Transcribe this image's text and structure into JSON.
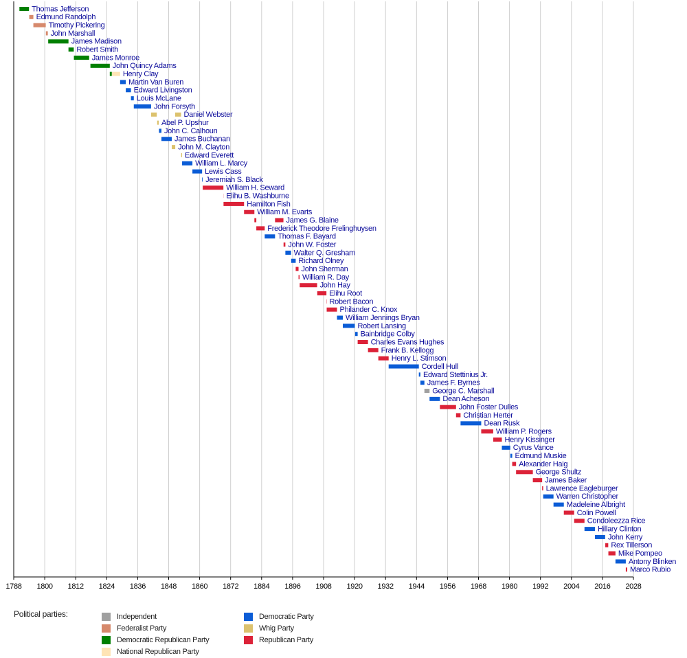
{
  "chart_data": {
    "type": "timeline",
    "legend_title": "Political parties:",
    "parties": [
      {
        "name": "Independent",
        "color": "#a0a0a0"
      },
      {
        "name": "Federalist Party",
        "color": "#d6896c"
      },
      {
        "name": "Democratic Republican Party",
        "color": "#008000"
      },
      {
        "name": "National Republican Party",
        "color": "#ffe4b5"
      },
      {
        "name": "Democratic Party",
        "color": "#0b5cd6"
      },
      {
        "name": "Whig Party",
        "color": "#dcc26e"
      },
      {
        "name": "Republican Party",
        "color": "#dc2238"
      }
    ],
    "xlim": [
      1788,
      2028
    ],
    "xticks": [
      1788,
      1800,
      1812,
      1824,
      1836,
      1848,
      1860,
      1872,
      1884,
      1896,
      1908,
      1920,
      1932,
      1944,
      1956,
      1968,
      1980,
      1992,
      2004,
      2016,
      2028
    ],
    "grid": true,
    "rows": [
      {
        "name": "Thomas Jefferson",
        "terms": [
          {
            "start": 1790.2,
            "end": 1793.9,
            "party": "Democratic Republican Party"
          }
        ]
      },
      {
        "name": "Edmund Randolph",
        "terms": [
          {
            "start": 1794.0,
            "end": 1795.6,
            "party": "Federalist Party"
          }
        ]
      },
      {
        "name": "Timothy Pickering",
        "terms": [
          {
            "start": 1795.6,
            "end": 1800.4,
            "party": "Federalist Party"
          }
        ]
      },
      {
        "name": "John Marshall",
        "terms": [
          {
            "start": 1800.45,
            "end": 1801.2,
            "party": "Federalist Party"
          }
        ]
      },
      {
        "name": "James Madison",
        "terms": [
          {
            "start": 1801.35,
            "end": 1809.2,
            "party": "Democratic Republican Party"
          }
        ]
      },
      {
        "name": "Robert Smith",
        "terms": [
          {
            "start": 1809.2,
            "end": 1811.25,
            "party": "Democratic Republican Party"
          }
        ]
      },
      {
        "name": "James Monroe",
        "terms": [
          {
            "start": 1811.3,
            "end": 1817.2,
            "party": "Democratic Republican Party"
          }
        ]
      },
      {
        "name": "John Quincy Adams",
        "terms": [
          {
            "start": 1817.7,
            "end": 1825.2,
            "party": "Democratic Republican Party"
          }
        ]
      },
      {
        "name": "Henry Clay",
        "terms": [
          {
            "start": 1825.2,
            "end": 1826.0,
            "party": "Democratic Republican Party"
          },
          {
            "start": 1826.0,
            "end": 1829.2,
            "party": "National Republican Party"
          }
        ]
      },
      {
        "name": "Martin Van Buren",
        "terms": [
          {
            "start": 1829.2,
            "end": 1831.4,
            "party": "Democratic Party"
          }
        ]
      },
      {
        "name": "Edward Livingston",
        "terms": [
          {
            "start": 1831.4,
            "end": 1833.4,
            "party": "Democratic Party"
          }
        ]
      },
      {
        "name": "Louis McLane",
        "terms": [
          {
            "start": 1833.4,
            "end": 1834.5,
            "party": "Democratic Party"
          }
        ]
      },
      {
        "name": "John Forsyth",
        "terms": [
          {
            "start": 1834.5,
            "end": 1841.2,
            "party": "Democratic Party"
          }
        ]
      },
      {
        "name": "Daniel Webster",
        "terms": [
          {
            "start": 1841.2,
            "end": 1843.4,
            "party": "Whig Party"
          },
          {
            "start": 1850.5,
            "end": 1852.8,
            "party": "Whig Party"
          }
        ]
      },
      {
        "name": "Abel P. Upshur",
        "terms": [
          {
            "start": 1843.55,
            "end": 1844.15,
            "party": "Whig Party"
          }
        ]
      },
      {
        "name": "John C. Calhoun",
        "terms": [
          {
            "start": 1844.25,
            "end": 1845.2,
            "party": "Democratic Party"
          }
        ]
      },
      {
        "name": "James Buchanan",
        "terms": [
          {
            "start": 1845.2,
            "end": 1849.2,
            "party": "Democratic Party"
          }
        ]
      },
      {
        "name": "John M. Clayton",
        "terms": [
          {
            "start": 1849.2,
            "end": 1850.55,
            "party": "Whig Party"
          }
        ]
      },
      {
        "name": "Edward Everett",
        "terms": [
          {
            "start": 1852.85,
            "end": 1853.2,
            "party": "Whig Party"
          }
        ]
      },
      {
        "name": "William L. Marcy",
        "terms": [
          {
            "start": 1853.2,
            "end": 1857.2,
            "party": "Democratic Party"
          }
        ]
      },
      {
        "name": "Lewis Cass",
        "terms": [
          {
            "start": 1857.2,
            "end": 1860.95,
            "party": "Democratic Party"
          }
        ]
      },
      {
        "name": "Jeremiah S. Black",
        "terms": [
          {
            "start": 1860.95,
            "end": 1861.2,
            "party": "Democratic Party"
          }
        ]
      },
      {
        "name": "William H. Seward",
        "terms": [
          {
            "start": 1861.2,
            "end": 1869.2,
            "party": "Republican Party"
          }
        ]
      },
      {
        "name": "Elihu B. Washburne",
        "terms": [
          {
            "start": 1869.2,
            "end": 1869.25,
            "party": "Republican Party"
          }
        ]
      },
      {
        "name": "Hamilton Fish",
        "terms": [
          {
            "start": 1869.25,
            "end": 1877.2,
            "party": "Republican Party"
          }
        ]
      },
      {
        "name": "William M. Evarts",
        "terms": [
          {
            "start": 1877.2,
            "end": 1881.2,
            "party": "Republican Party"
          }
        ]
      },
      {
        "name": "James G. Blaine",
        "terms": [
          {
            "start": 1881.2,
            "end": 1881.95,
            "party": "Republican Party"
          },
          {
            "start": 1889.2,
            "end": 1892.45,
            "party": "Republican Party"
          }
        ]
      },
      {
        "name": "Frederick Theodore Frelinghuysen",
        "terms": [
          {
            "start": 1881.95,
            "end": 1885.2,
            "party": "Republican Party"
          }
        ]
      },
      {
        "name": "Thomas F. Bayard",
        "terms": [
          {
            "start": 1885.2,
            "end": 1889.2,
            "party": "Democratic Party"
          }
        ]
      },
      {
        "name": "John W. Foster",
        "terms": [
          {
            "start": 1892.5,
            "end": 1893.2,
            "party": "Republican Party"
          }
        ]
      },
      {
        "name": "Walter Q. Gresham",
        "terms": [
          {
            "start": 1893.2,
            "end": 1895.4,
            "party": "Democratic Party"
          }
        ]
      },
      {
        "name": "Richard Olney",
        "terms": [
          {
            "start": 1895.45,
            "end": 1897.2,
            "party": "Democratic Party"
          }
        ]
      },
      {
        "name": "John Sherman",
        "terms": [
          {
            "start": 1897.2,
            "end": 1898.3,
            "party": "Republican Party"
          }
        ]
      },
      {
        "name": "William R. Day",
        "terms": [
          {
            "start": 1898.3,
            "end": 1898.7,
            "party": "Republican Party"
          }
        ]
      },
      {
        "name": "John Hay",
        "terms": [
          {
            "start": 1898.75,
            "end": 1905.5,
            "party": "Republican Party"
          }
        ]
      },
      {
        "name": "Elihu Root",
        "terms": [
          {
            "start": 1905.55,
            "end": 1909.1,
            "party": "Republican Party"
          }
        ]
      },
      {
        "name": "Robert Bacon",
        "terms": [
          {
            "start": 1909.1,
            "end": 1909.2,
            "party": "Republican Party"
          }
        ]
      },
      {
        "name": "Philander C. Knox",
        "terms": [
          {
            "start": 1909.2,
            "end": 1913.2,
            "party": "Republican Party"
          }
        ]
      },
      {
        "name": "William Jennings Bryan",
        "terms": [
          {
            "start": 1913.2,
            "end": 1915.45,
            "party": "Democratic Party"
          }
        ]
      },
      {
        "name": "Robert Lansing",
        "terms": [
          {
            "start": 1915.45,
            "end": 1920.1,
            "party": "Democratic Party"
          }
        ]
      },
      {
        "name": "Bainbridge Colby",
        "terms": [
          {
            "start": 1920.2,
            "end": 1921.2,
            "party": "Democratic Party"
          }
        ]
      },
      {
        "name": "Charles Evans Hughes",
        "terms": [
          {
            "start": 1921.2,
            "end": 1925.2,
            "party": "Republican Party"
          }
        ]
      },
      {
        "name": "Frank B. Kellogg",
        "terms": [
          {
            "start": 1925.2,
            "end": 1929.2,
            "party": "Republican Party"
          }
        ]
      },
      {
        "name": "Henry L. Stimson",
        "terms": [
          {
            "start": 1929.2,
            "end": 1933.2,
            "party": "Republican Party"
          }
        ]
      },
      {
        "name": "Cordell Hull",
        "terms": [
          {
            "start": 1933.2,
            "end": 1944.9,
            "party": "Democratic Party"
          }
        ]
      },
      {
        "name": "Edward Stettinius Jr.",
        "terms": [
          {
            "start": 1944.9,
            "end": 1945.5,
            "party": "Democratic Party"
          }
        ]
      },
      {
        "name": "James F. Byrnes",
        "terms": [
          {
            "start": 1945.5,
            "end": 1947.05,
            "party": "Democratic Party"
          }
        ]
      },
      {
        "name": "George C. Marshall",
        "terms": [
          {
            "start": 1947.05,
            "end": 1949.05,
            "party": "Independent"
          }
        ]
      },
      {
        "name": "Dean Acheson",
        "terms": [
          {
            "start": 1949.05,
            "end": 1953.05,
            "party": "Democratic Party"
          }
        ]
      },
      {
        "name": "John Foster Dulles",
        "terms": [
          {
            "start": 1953.05,
            "end": 1959.3,
            "party": "Republican Party"
          }
        ]
      },
      {
        "name": "Christian Herter",
        "terms": [
          {
            "start": 1959.3,
            "end": 1961.05,
            "party": "Republican Party"
          }
        ]
      },
      {
        "name": "Dean Rusk",
        "terms": [
          {
            "start": 1961.05,
            "end": 1969.05,
            "party": "Democratic Party"
          }
        ]
      },
      {
        "name": "William P. Rogers",
        "terms": [
          {
            "start": 1969.05,
            "end": 1973.7,
            "party": "Republican Party"
          }
        ]
      },
      {
        "name": "Henry Kissinger",
        "terms": [
          {
            "start": 1973.7,
            "end": 1977.05,
            "party": "Republican Party"
          }
        ]
      },
      {
        "name": "Cyrus Vance",
        "terms": [
          {
            "start": 1977.05,
            "end": 1980.3,
            "party": "Democratic Party"
          }
        ]
      },
      {
        "name": "Edmund Muskie",
        "terms": [
          {
            "start": 1980.35,
            "end": 1981.05,
            "party": "Democratic Party"
          }
        ]
      },
      {
        "name": "Alexander Haig",
        "terms": [
          {
            "start": 1981.05,
            "end": 1982.55,
            "party": "Republican Party"
          }
        ]
      },
      {
        "name": "George Shultz",
        "terms": [
          {
            "start": 1982.55,
            "end": 1989.05,
            "party": "Republican Party"
          }
        ]
      },
      {
        "name": "James Baker",
        "terms": [
          {
            "start": 1989.05,
            "end": 1992.65,
            "party": "Republican Party"
          }
        ]
      },
      {
        "name": "Lawrence Eagleburger",
        "terms": [
          {
            "start": 1992.65,
            "end": 1993.05,
            "party": "Republican Party"
          }
        ]
      },
      {
        "name": "Warren Christopher",
        "terms": [
          {
            "start": 1993.05,
            "end": 1997.05,
            "party": "Democratic Party"
          }
        ]
      },
      {
        "name": "Madeleine Albright",
        "terms": [
          {
            "start": 1997.05,
            "end": 2001.05,
            "party": "Democratic Party"
          }
        ]
      },
      {
        "name": "Colin Powell",
        "terms": [
          {
            "start": 2001.05,
            "end": 2005.05,
            "party": "Republican Party"
          }
        ]
      },
      {
        "name": "Condoleezza Rice",
        "terms": [
          {
            "start": 2005.05,
            "end": 2009.05,
            "party": "Republican Party"
          }
        ]
      },
      {
        "name": "Hillary Clinton",
        "terms": [
          {
            "start": 2009.05,
            "end": 2013.1,
            "party": "Democratic Party"
          }
        ]
      },
      {
        "name": "John Kerry",
        "terms": [
          {
            "start": 2013.1,
            "end": 2017.05,
            "party": "Democratic Party"
          }
        ]
      },
      {
        "name": "Rex Tillerson",
        "terms": [
          {
            "start": 2017.1,
            "end": 2018.25,
            "party": "Republican Party"
          }
        ]
      },
      {
        "name": "Mike Pompeo",
        "terms": [
          {
            "start": 2018.3,
            "end": 2021.05,
            "party": "Republican Party"
          }
        ]
      },
      {
        "name": "Antony Blinken",
        "terms": [
          {
            "start": 2021.05,
            "end": 2025.05,
            "party": "Democratic Party"
          }
        ]
      },
      {
        "name": "Marco Rubio",
        "terms": [
          {
            "start": 2025.05,
            "end": 2025.6,
            "party": "Republican Party"
          }
        ]
      }
    ]
  }
}
